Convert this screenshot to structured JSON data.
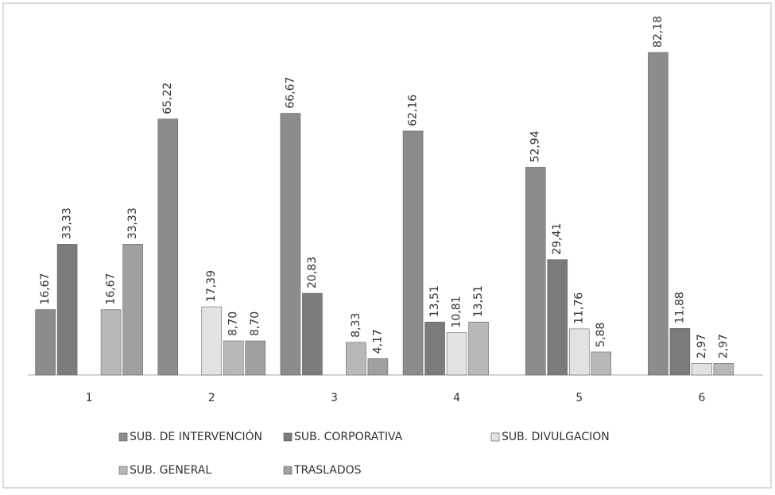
{
  "chart_data": {
    "type": "bar",
    "categories": [
      "1",
      "2",
      "3",
      "4",
      "5",
      "6"
    ],
    "series": [
      {
        "name": "SUB. DE INTERVENCIÓN",
        "color": "#8c8c8c",
        "values": [
          16.67,
          65.22,
          66.67,
          62.16,
          52.94,
          82.18
        ],
        "value_labels": [
          "16,67",
          "65,22",
          "66,67",
          "62,16",
          "52,94",
          "82,18"
        ]
      },
      {
        "name": "SUB. CORPORATIVA",
        "color": "#7b7b7b",
        "values": [
          33.33,
          null,
          20.83,
          13.51,
          29.41,
          11.88
        ],
        "value_labels": [
          "33,33",
          null,
          "20,83",
          "13,51",
          "29,41",
          "11,88"
        ]
      },
      {
        "name": "SUB. DIVULGACION",
        "color": "#e2e2e2",
        "values": [
          null,
          17.39,
          null,
          10.81,
          11.76,
          2.97
        ],
        "value_labels": [
          null,
          "17,39",
          null,
          "10,81",
          "11,76",
          "2,97"
        ]
      },
      {
        "name": "SUB. GENERAL",
        "color": "#b8b8b8",
        "values": [
          16.67,
          8.7,
          8.33,
          13.51,
          5.88,
          2.97
        ],
        "value_labels": [
          "16,67",
          "8,70",
          "8,33",
          "13,51",
          "5,88",
          "2,97"
        ]
      },
      {
        "name": "TRASLADOS",
        "color": "#a0a0a0",
        "values": [
          33.33,
          8.7,
          4.17,
          null,
          null,
          null
        ],
        "value_labels": [
          "33,33",
          "8,70",
          "4,17",
          null,
          null,
          null
        ]
      }
    ]
  }
}
